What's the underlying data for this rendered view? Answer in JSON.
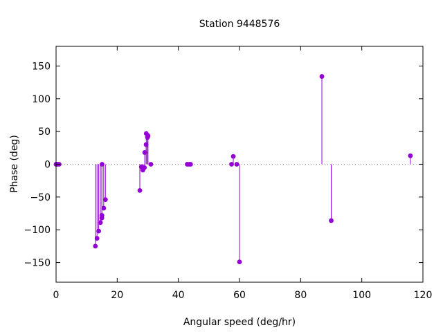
{
  "colors": {
    "series": "#9400d3",
    "axis": "#000000",
    "zero_line": "#a0a0a0"
  },
  "chart_data": {
    "type": "scatter",
    "style": "impulses-with-points",
    "title": "Station 9448576",
    "xlabel": "Angular speed (deg/hr)",
    "ylabel": "Phase (deg)",
    "xlim": [
      0,
      120
    ],
    "ylim": [
      -180,
      180
    ],
    "xticks": [
      0,
      20,
      40,
      60,
      80,
      100,
      120
    ],
    "yticks": [
      -150,
      -100,
      -50,
      0,
      50,
      100,
      150
    ],
    "grid": false,
    "zero_line": true,
    "legend": false,
    "points": [
      {
        "x": 0.0,
        "y": 0
      },
      {
        "x": 0.04,
        "y": 0
      },
      {
        "x": 0.08,
        "y": 0
      },
      {
        "x": 0.5,
        "y": 0
      },
      {
        "x": 1.0,
        "y": 0
      },
      {
        "x": 12.85,
        "y": -125
      },
      {
        "x": 13.4,
        "y": -113
      },
      {
        "x": 13.94,
        "y": -102
      },
      {
        "x": 14.5,
        "y": -89
      },
      {
        "x": 14.96,
        "y": -82
      },
      {
        "x": 15.0,
        "y": -78
      },
      {
        "x": 15.04,
        "y": 0
      },
      {
        "x": 15.59,
        "y": -67
      },
      {
        "x": 16.14,
        "y": -54
      },
      {
        "x": 27.4,
        "y": -40
      },
      {
        "x": 27.9,
        "y": -4
      },
      {
        "x": 28.4,
        "y": -9
      },
      {
        "x": 28.5,
        "y": -7
      },
      {
        "x": 28.9,
        "y": -5
      },
      {
        "x": 29.0,
        "y": 18
      },
      {
        "x": 29.45,
        "y": 30
      },
      {
        "x": 29.5,
        "y": 47
      },
      {
        "x": 29.9,
        "y": 41
      },
      {
        "x": 30.0,
        "y": 44
      },
      {
        "x": 30.08,
        "y": 43
      },
      {
        "x": 31.0,
        "y": 0
      },
      {
        "x": 42.9,
        "y": 0
      },
      {
        "x": 43.5,
        "y": 0
      },
      {
        "x": 44.0,
        "y": 0
      },
      {
        "x": 57.4,
        "y": 0
      },
      {
        "x": 57.97,
        "y": 12
      },
      {
        "x": 59.1,
        "y": 0
      },
      {
        "x": 60.0,
        "y": -149
      },
      {
        "x": 86.95,
        "y": 134
      },
      {
        "x": 90.0,
        "y": -86
      },
      {
        "x": 115.9,
        "y": 13
      }
    ]
  }
}
